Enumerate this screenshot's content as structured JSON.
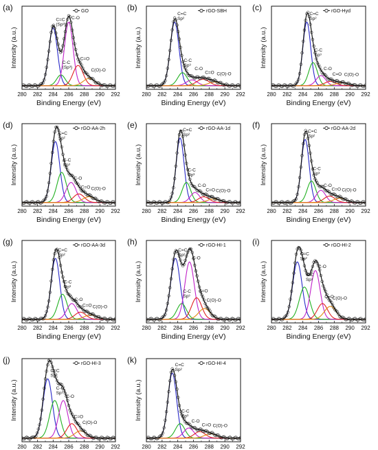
{
  "figure": {
    "panels": [
      {
        "letter": "(a)",
        "legend": "GO",
        "labels": {
          "c_eq_c": "C=C",
          "c_eq_c_sp": "(Sp²)",
          "c_c": "C-C",
          "c_c_sp": "(Sp³)",
          "c_o": "C-O",
          "c_double_o": "C=O",
          "c_o_o": "C(O)-O"
        }
      },
      {
        "letter": "(b)",
        "legend": "rGO-SBH",
        "labels": {
          "c_eq_c": "C=C",
          "c_eq_c_sp": "Sp²",
          "c_c": "C-C",
          "c_c_sp": "Sp³",
          "c_o": "C-O",
          "c_double_o": "C=O",
          "c_o_o": "C(O)-O"
        }
      },
      {
        "letter": "(c)",
        "legend": "rGO-Hyd",
        "labels": {
          "c_eq_c": "C=C",
          "c_eq_c_sp": "Sp²",
          "c_c": "C-C",
          "c_c_sp": "Sp³",
          "c_o": "C-O",
          "c_double_o": "C=O",
          "c_o_o": "C(O)-O"
        }
      },
      {
        "letter": "(d)",
        "legend": "rGO-AA-2h",
        "labels": {
          "c_eq_c": "C=C",
          "c_eq_c_sp": "Sp²",
          "c_c": "C-C",
          "c_c_sp": "Sp³",
          "c_o": "C-O",
          "c_double_o": "C=O",
          "c_o_o": "C(O)-O"
        }
      },
      {
        "letter": "(e)",
        "legend": "rGO-AA-1d",
        "labels": {
          "c_eq_c": "C=C",
          "c_eq_c_sp": "Sp²",
          "c_c": "C-C",
          "c_c_sp": "Sp³",
          "c_o": "C-O",
          "c_double_o": "C=O",
          "c_o_o": "C(O)-O"
        }
      },
      {
        "letter": "(f)",
        "legend": "rGO-AA-2d",
        "labels": {
          "c_eq_c": "C=C",
          "c_eq_c_sp": "Sp²",
          "c_c": "C-C",
          "c_c_sp": "Sp³",
          "c_o": "C-O",
          "c_double_o": "C=O",
          "c_o_o": "C(O)-O"
        }
      },
      {
        "letter": "(g)",
        "legend": "rGO-AA-3d",
        "labels": {
          "c_eq_c": "C=C",
          "c_eq_c_sp": "Sp²",
          "c_c": "C-C",
          "c_c_sp": "Sp³",
          "c_o": "C-O",
          "c_double_o": "C=O",
          "c_o_o": "C(O)-O"
        }
      },
      {
        "letter": "(h)",
        "legend": "rGO-HI-1",
        "labels": {
          "c_eq_c": "C=C",
          "c_eq_c_sp": "Sp²",
          "c_c": "C-C",
          "c_c_sp": "Sp³",
          "c_o": "C-O",
          "c_double_o": "C=O",
          "c_o_o": "C(O)-O"
        }
      },
      {
        "letter": "(i)",
        "legend": "rGO-HI-2",
        "labels": {
          "c_eq_c": "C=C",
          "c_eq_c_sp": "Sp²",
          "c_c": "C-C",
          "c_c_sp": "Sp³",
          "c_o": "C-O",
          "c_double_o": "C=O",
          "c_o_o": "C(O)-O"
        }
      },
      {
        "letter": "(j)",
        "legend": "rGO-HI-3",
        "labels": {
          "c_eq_c": "C=C",
          "c_eq_c_sp": "Sp²",
          "c_c": "C-C",
          "c_c_sp": "Sp³",
          "c_o": "C-O",
          "c_double_o": "C=O",
          "c_o_o": "C(O)-O"
        }
      },
      {
        "letter": "(k)",
        "legend": "rGO-HI-4",
        "labels": {
          "c_eq_c": "C=C",
          "c_eq_c_sp": "Sp²",
          "c_c": "C-C",
          "c_c_sp": "Sp³",
          "c_o": "C-O",
          "c_double_o": "C=O",
          "c_o_o": "C(O)-O"
        }
      }
    ]
  },
  "chart_data": [
    {
      "type": "line",
      "title": "",
      "legend": "GO",
      "xlabel": "Binding Energy (eV)",
      "ylabel": "Intensity (a.u.)",
      "xlim": [
        280,
        292
      ],
      "ylim": [
        0,
        1.15
      ],
      "xticks": [
        280,
        282,
        284,
        286,
        288,
        290,
        292
      ],
      "grid": false,
      "legend_placement": "top-right",
      "series": [
        {
          "name": "C=C",
          "center": 284.0,
          "amp": 0.8,
          "sigma": 0.55
        },
        {
          "name": "C-C",
          "center": 285.0,
          "amp": 0.15,
          "sigma": 0.55
        },
        {
          "name": "C-O",
          "center": 286.0,
          "amp": 0.88,
          "sigma": 0.55
        },
        {
          "name": "C=O",
          "center": 287.2,
          "amp": 0.28,
          "sigma": 0.65
        },
        {
          "name": "C(O)-O",
          "center": 288.6,
          "amp": 0.1,
          "sigma": 0.75
        }
      ]
    },
    {
      "type": "line",
      "title": "",
      "legend": "rGO-SBH",
      "xlabel": "Binding Energy (eV)",
      "ylabel": "Intensity (a.u.)",
      "xlim": [
        280,
        292
      ],
      "ylim": [
        0,
        1.15
      ],
      "xticks": [
        280,
        282,
        284,
        286,
        288,
        290,
        292
      ],
      "grid": false,
      "legend_placement": "top-right",
      "series": [
        {
          "name": "C=C",
          "center": 283.6,
          "amp": 0.88,
          "sigma": 0.55
        },
        {
          "name": "C-C",
          "center": 284.6,
          "amp": 0.18,
          "sigma": 0.6
        },
        {
          "name": "C-O",
          "center": 285.8,
          "amp": 0.08,
          "sigma": 0.7
        },
        {
          "name": "C=O",
          "center": 287.2,
          "amp": 0.09,
          "sigma": 0.8
        },
        {
          "name": "C(O)-O",
          "center": 288.7,
          "amp": 0.05,
          "sigma": 0.8
        }
      ]
    },
    {
      "type": "line",
      "title": "",
      "legend": "rGO-Hyd",
      "xlabel": "Binding Energy (eV)",
      "ylabel": "Intensity (a.u.)",
      "xlim": [
        280,
        292
      ],
      "ylim": [
        0,
        1.15
      ],
      "xticks": [
        280,
        282,
        284,
        286,
        288,
        290,
        292
      ],
      "grid": false,
      "legend_placement": "top-right",
      "series": [
        {
          "name": "C=C",
          "center": 284.5,
          "amp": 0.88,
          "sigma": 0.5
        },
        {
          "name": "C-C",
          "center": 285.3,
          "amp": 0.32,
          "sigma": 0.55
        },
        {
          "name": "C-O",
          "center": 286.3,
          "amp": 0.14,
          "sigma": 0.6
        },
        {
          "name": "C=O",
          "center": 287.5,
          "amp": 0.06,
          "sigma": 0.7
        },
        {
          "name": "C(O)-O",
          "center": 289.0,
          "amp": 0.04,
          "sigma": 0.8
        }
      ]
    },
    {
      "type": "line",
      "title": "",
      "legend": "rGO-AA-2h",
      "xlabel": "Binding Energy (eV)",
      "ylabel": "Intensity (a.u.)",
      "xlim": [
        280,
        292
      ],
      "ylim": [
        0,
        1.15
      ],
      "xticks": [
        280,
        282,
        284,
        286,
        288,
        290,
        292
      ],
      "grid": false,
      "legend_placement": "top-right",
      "series": [
        {
          "name": "C=C",
          "center": 284.3,
          "amp": 0.85,
          "sigma": 0.55
        },
        {
          "name": "C-C",
          "center": 285.1,
          "amp": 0.42,
          "sigma": 0.6
        },
        {
          "name": "C-O",
          "center": 286.3,
          "amp": 0.28,
          "sigma": 0.65
        },
        {
          "name": "C=O",
          "center": 287.3,
          "amp": 0.12,
          "sigma": 0.7
        },
        {
          "name": "C(O)-O",
          "center": 288.6,
          "amp": 0.08,
          "sigma": 0.8
        }
      ]
    },
    {
      "type": "line",
      "title": "",
      "legend": "rGO-AA-1d",
      "xlabel": "Binding Energy (eV)",
      "ylabel": "Intensity (a.u.)",
      "xlim": [
        280,
        292
      ],
      "ylim": [
        0,
        1.15
      ],
      "xticks": [
        280,
        282,
        284,
        286,
        288,
        290,
        292
      ],
      "grid": false,
      "legend_placement": "top-right",
      "series": [
        {
          "name": "C=C",
          "center": 284.3,
          "amp": 0.9,
          "sigma": 0.5
        },
        {
          "name": "C-C",
          "center": 285.1,
          "amp": 0.28,
          "sigma": 0.55
        },
        {
          "name": "C-O",
          "center": 286.2,
          "amp": 0.14,
          "sigma": 0.6
        },
        {
          "name": "C=O",
          "center": 287.3,
          "amp": 0.08,
          "sigma": 0.7
        },
        {
          "name": "C(O)-O",
          "center": 288.6,
          "amp": 0.05,
          "sigma": 0.8
        }
      ]
    },
    {
      "type": "line",
      "title": "",
      "legend": "rGO-AA-2d",
      "xlabel": "Binding Energy (eV)",
      "ylabel": "Intensity (a.u.)",
      "xlim": [
        280,
        292
      ],
      "ylim": [
        0,
        1.15
      ],
      "xticks": [
        280,
        282,
        284,
        286,
        288,
        290,
        292
      ],
      "grid": false,
      "legend_placement": "top-right",
      "series": [
        {
          "name": "C=C",
          "center": 284.3,
          "amp": 0.88,
          "sigma": 0.5
        },
        {
          "name": "C-C",
          "center": 285.1,
          "amp": 0.3,
          "sigma": 0.55
        },
        {
          "name": "C-O",
          "center": 286.3,
          "amp": 0.17,
          "sigma": 0.6
        },
        {
          "name": "C=O",
          "center": 287.4,
          "amp": 0.09,
          "sigma": 0.7
        },
        {
          "name": "C(O)-O",
          "center": 288.7,
          "amp": 0.06,
          "sigma": 0.8
        }
      ]
    },
    {
      "type": "line",
      "title": "",
      "legend": "rGO-AA-3d",
      "xlabel": "Binding Energy (eV)",
      "ylabel": "Intensity (a.u.)",
      "xlim": [
        280,
        292
      ],
      "ylim": [
        0,
        1.15
      ],
      "xticks": [
        280,
        282,
        284,
        286,
        288,
        290,
        292
      ],
      "grid": false,
      "legend_placement": "top-right",
      "series": [
        {
          "name": "C=C",
          "center": 284.3,
          "amp": 0.85,
          "sigma": 0.55
        },
        {
          "name": "C-C",
          "center": 285.2,
          "amp": 0.35,
          "sigma": 0.6
        },
        {
          "name": "C-O",
          "center": 286.4,
          "amp": 0.22,
          "sigma": 0.65
        },
        {
          "name": "C=O",
          "center": 287.5,
          "amp": 0.1,
          "sigma": 0.7
        },
        {
          "name": "C(O)-O",
          "center": 288.8,
          "amp": 0.06,
          "sigma": 0.8
        }
      ]
    },
    {
      "type": "line",
      "title": "",
      "legend": "rGO-HI-1",
      "xlabel": "Binding Energy (eV)",
      "ylabel": "Intensity (a.u.)",
      "xlim": [
        280,
        292
      ],
      "ylim": [
        0,
        1.15
      ],
      "xticks": [
        280,
        282,
        284,
        286,
        288,
        290,
        292
      ],
      "grid": false,
      "legend_placement": "top-right",
      "series": [
        {
          "name": "C=C",
          "center": 283.7,
          "amp": 0.85,
          "sigma": 0.6
        },
        {
          "name": "C-C",
          "center": 284.5,
          "amp": 0.22,
          "sigma": 0.6
        },
        {
          "name": "C-O",
          "center": 285.5,
          "amp": 0.8,
          "sigma": 0.6
        },
        {
          "name": "C=O",
          "center": 286.4,
          "amp": 0.3,
          "sigma": 0.65
        },
        {
          "name": "C(O)-O",
          "center": 287.4,
          "amp": 0.15,
          "sigma": 0.75
        }
      ]
    },
    {
      "type": "line",
      "title": "",
      "legend": "rGO-HI-2",
      "xlabel": "Binding Energy (eV)",
      "ylabel": "Intensity (a.u.)",
      "xlim": [
        280,
        292
      ],
      "ylim": [
        0,
        1.15
      ],
      "xticks": [
        280,
        282,
        284,
        286,
        288,
        290,
        292
      ],
      "grid": false,
      "legend_placement": "top-right",
      "series": [
        {
          "name": "C=C",
          "center": 283.3,
          "amp": 0.8,
          "sigma": 0.6
        },
        {
          "name": "C-C",
          "center": 284.2,
          "amp": 0.45,
          "sigma": 0.65
        },
        {
          "name": "C-O",
          "center": 285.6,
          "amp": 0.68,
          "sigma": 0.6
        },
        {
          "name": "C=O",
          "center": 286.5,
          "amp": 0.22,
          "sigma": 0.65
        },
        {
          "name": "C(O)-O",
          "center": 287.5,
          "amp": 0.18,
          "sigma": 0.75
        }
      ]
    },
    {
      "type": "line",
      "title": "",
      "legend": "rGO-HI-3",
      "xlabel": "Binding Energy (eV)",
      "ylabel": "Intensity (a.u.)",
      "xlim": [
        280,
        292
      ],
      "ylim": [
        0,
        1.15
      ],
      "xticks": [
        280,
        282,
        284,
        286,
        288,
        290,
        292
      ],
      "grid": false,
      "legend_placement": "top-right",
      "series": [
        {
          "name": "C=C",
          "center": 283.3,
          "amp": 0.82,
          "sigma": 0.6
        },
        {
          "name": "C-C",
          "center": 284.2,
          "amp": 0.52,
          "sigma": 0.65
        },
        {
          "name": "C-O",
          "center": 285.3,
          "amp": 0.52,
          "sigma": 0.6
        },
        {
          "name": "C=O",
          "center": 286.4,
          "amp": 0.2,
          "sigma": 0.65
        },
        {
          "name": "C(O)-O",
          "center": 287.5,
          "amp": 0.1,
          "sigma": 0.75
        }
      ]
    },
    {
      "type": "line",
      "title": "",
      "legend": "rGO-HI-4",
      "xlabel": "Binding Energy (eV)",
      "ylabel": "Intensity (a.u.)",
      "xlim": [
        280,
        292
      ],
      "ylim": [
        0,
        1.15
      ],
      "xticks": [
        280,
        282,
        284,
        286,
        288,
        290,
        292
      ],
      "grid": false,
      "legend_placement": "top-right",
      "series": [
        {
          "name": "C=C",
          "center": 283.3,
          "amp": 0.9,
          "sigma": 0.55
        },
        {
          "name": "C-C",
          "center": 284.3,
          "amp": 0.2,
          "sigma": 0.6
        },
        {
          "name": "C-O",
          "center": 285.4,
          "amp": 0.14,
          "sigma": 0.65
        },
        {
          "name": "C=O",
          "center": 286.8,
          "amp": 0.09,
          "sigma": 0.7
        },
        {
          "name": "C(O)-O",
          "center": 288.2,
          "amp": 0.06,
          "sigma": 0.8
        }
      ]
    }
  ],
  "colors": {
    "c_eq_c": "#2828c8",
    "c_c": "#20b020",
    "c_o": "#c020c8",
    "c_double_o": "#e02020",
    "c_o_o": "#e08a10",
    "envelope": "#111111",
    "background": "#ff8800"
  },
  "icons": {
    "legend_marker": "open-circle-line-icon"
  }
}
